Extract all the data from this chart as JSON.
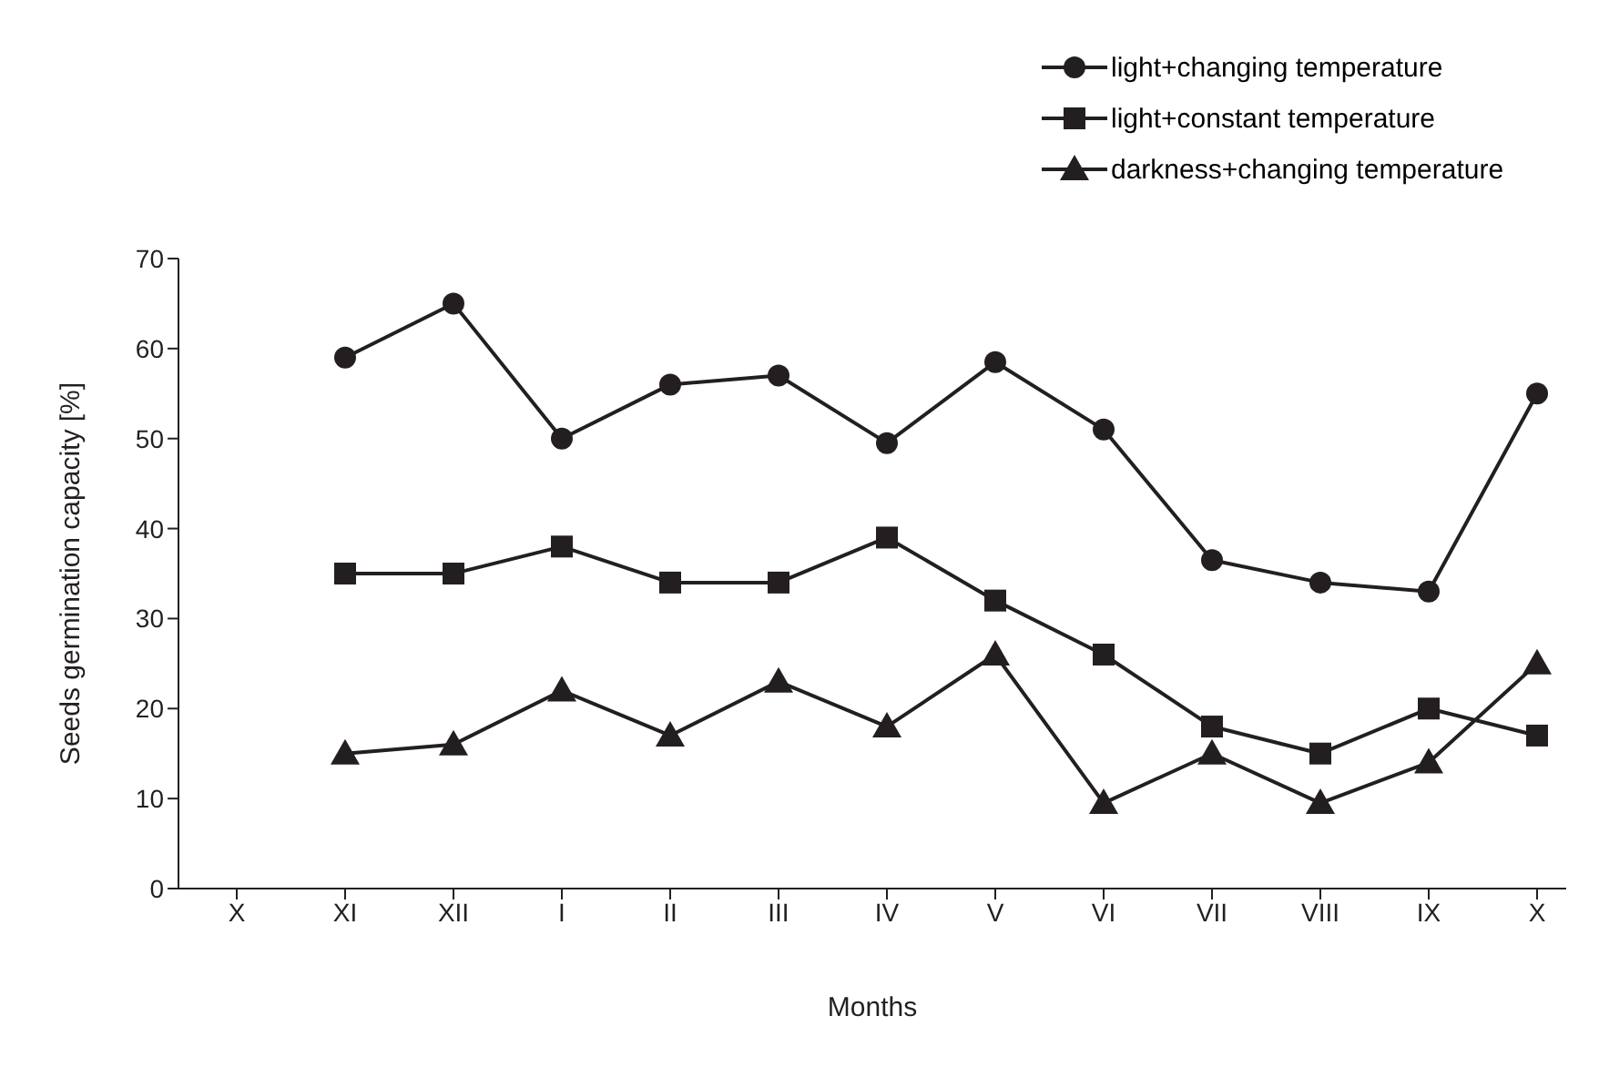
{
  "chart_data": {
    "type": "line",
    "xlabel": "Months",
    "ylabel": "Seeds germination capacity [%]",
    "categories": [
      "X",
      "XI",
      "XII",
      "I",
      "II",
      "III",
      "IV",
      "V",
      "VI",
      "VII",
      "VIII",
      "IX",
      "X"
    ],
    "series": [
      {
        "name": "light+changing temperature",
        "color": "#231f20",
        "marker": "circle",
        "values": [
          null,
          59,
          65,
          50,
          56,
          57,
          49.5,
          58.5,
          51,
          36.5,
          34,
          33,
          55
        ]
      },
      {
        "name": "light+constant temperature",
        "color": "#231f20",
        "marker": "square",
        "values": [
          null,
          35,
          35,
          38,
          34,
          34,
          39,
          32,
          26,
          18,
          15,
          20,
          17
        ]
      },
      {
        "name": "darkness+changing temperature",
        "color": "#231f20",
        "marker": "triangle",
        "values": [
          null,
          15,
          16,
          22,
          17,
          23,
          18,
          26,
          9.5,
          15,
          9.5,
          14,
          25
        ]
      }
    ],
    "ylim": [
      0,
      70
    ],
    "yticks": [
      0,
      10,
      20,
      30,
      40,
      50,
      60,
      70
    ],
    "grid": false,
    "legend": "top right"
  }
}
